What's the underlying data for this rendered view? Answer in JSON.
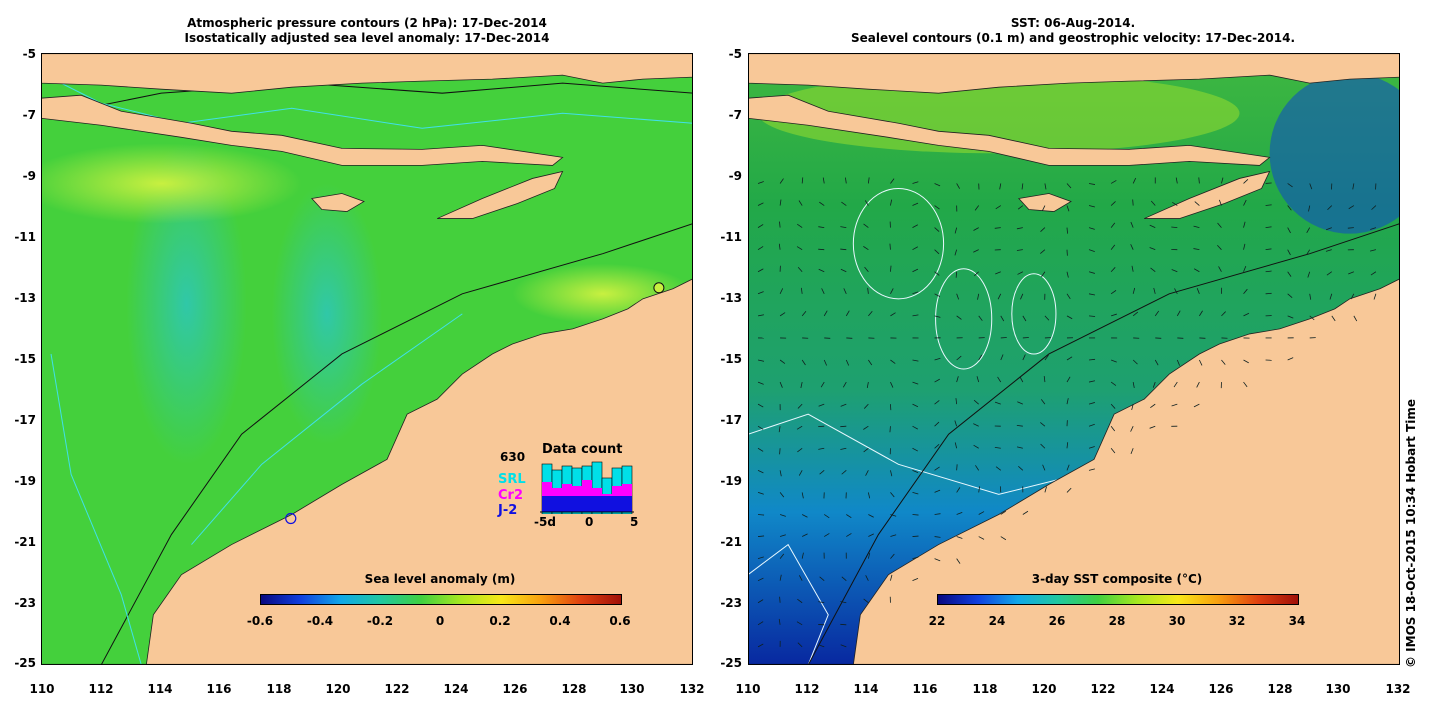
{
  "left_panel": {
    "title_line1": "Atmospheric pressure contours (2 hPa): 17-Dec-2014",
    "title_line2": "Isostatically adjusted sea level anomaly: 17-Dec-2014",
    "colorbar": {
      "label": "Sea level anomaly (m)",
      "ticks": [
        "-0.6",
        "-0.4",
        "-0.2",
        "0",
        "0.2",
        "0.4",
        "0.6"
      ]
    },
    "data_count": {
      "title": "Data count",
      "total": "630",
      "legend": [
        {
          "name": "SRL",
          "color": "#00e0e8"
        },
        {
          "name": "Cr2",
          "color": "#ff00ff"
        },
        {
          "name": "J-2",
          "color": "#1010e0"
        }
      ],
      "axis_labels": [
        "-5d",
        "0",
        "5"
      ]
    }
  },
  "right_panel": {
    "title_line1": "SST: 06-Aug-2014.",
    "title_line2": "Sealevel contours (0.1 m) and geostrophic velocity: 17-Dec-2014.",
    "colorbar": {
      "label": "3-day SST composite (°C)",
      "ticks": [
        "22",
        "24",
        "26",
        "28",
        "30",
        "32",
        "34"
      ]
    }
  },
  "axes": {
    "lat_ticks": [
      "-5",
      "-7",
      "-9",
      "-11",
      "-13",
      "-15",
      "-17",
      "-19",
      "-21",
      "-23",
      "-25"
    ],
    "lon_ticks": [
      "110",
      "112",
      "114",
      "116",
      "118",
      "120",
      "122",
      "124",
      "126",
      "128",
      "130",
      "132"
    ]
  },
  "credit": "© IMOS 18-Oct-2015 10:34 Hobart Time",
  "colors": {
    "land": "#f8c898",
    "ocean_left": "#44d03c",
    "ocean_right": "#22a060",
    "contour_cyan": "#40e0e8"
  }
}
